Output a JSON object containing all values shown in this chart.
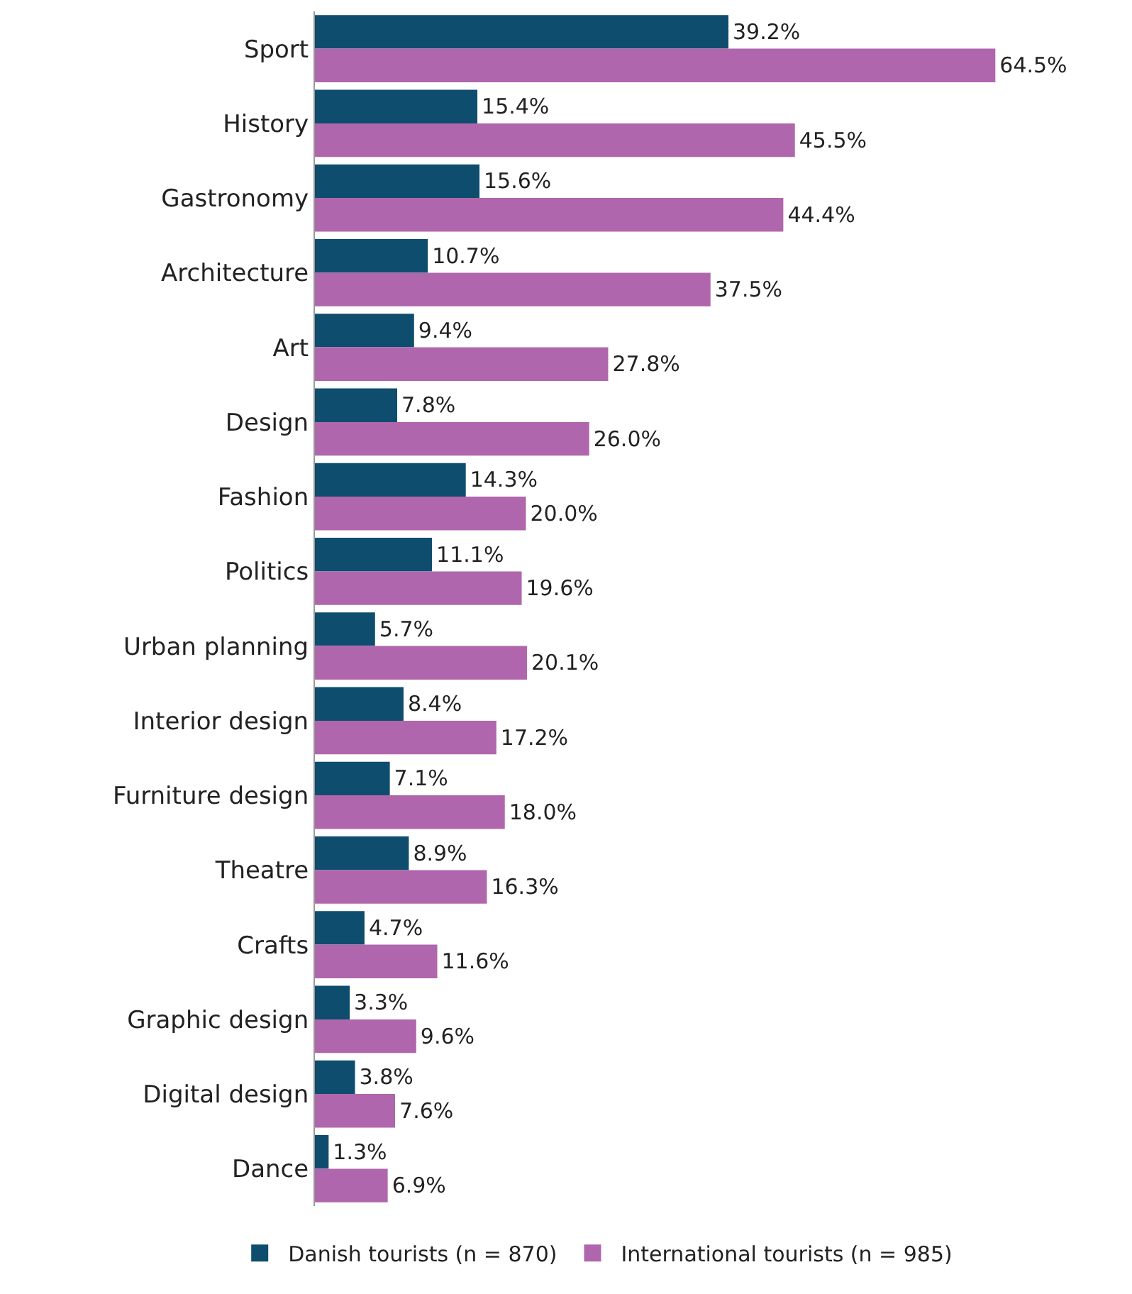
{
  "chart_data": {
    "type": "bar",
    "orientation": "horizontal",
    "categories": [
      "Sport",
      "History",
      "Gastronomy",
      "Architecture",
      "Art",
      "Design",
      "Fashion",
      "Politics",
      "Urban planning",
      "Interior design",
      "Furniture design",
      "Theatre",
      "Crafts",
      "Graphic design",
      "Digital design",
      "Dance"
    ],
    "series": [
      {
        "name": "Danish tourists (n = 870)",
        "color": "#0e4d6e",
        "values": [
          39.2,
          15.4,
          15.6,
          10.7,
          9.4,
          7.8,
          14.3,
          11.1,
          5.7,
          8.4,
          7.1,
          8.9,
          4.7,
          3.3,
          3.8,
          1.3
        ],
        "value_labels": [
          "39.2%",
          "15.4%",
          "15.6%",
          "10.7%",
          "9.4%",
          "7.8%",
          "14.3%",
          "11.1%",
          "5.7%",
          "8.4%",
          "7.1%",
          "8.9%",
          "4.7%",
          "3.3%",
          "3.8%",
          "1.3%"
        ]
      },
      {
        "name": "International tourists (n = 985)",
        "color": "#b066ac",
        "values": [
          64.5,
          45.5,
          44.4,
          37.5,
          27.8,
          26.0,
          20.0,
          19.6,
          20.1,
          17.2,
          18.0,
          16.3,
          11.6,
          9.6,
          7.6,
          6.9
        ],
        "value_labels": [
          "64.5%",
          "45.5%",
          "44.4%",
          "37.5%",
          "27.8%",
          "26.0%",
          "20.0%",
          "19.6%",
          "20.1%",
          "17.2%",
          "18.0%",
          "16.3%",
          "11.6%",
          "9.6%",
          "7.6%",
          "6.9%"
        ]
      }
    ],
    "legend": "bottom"
  }
}
